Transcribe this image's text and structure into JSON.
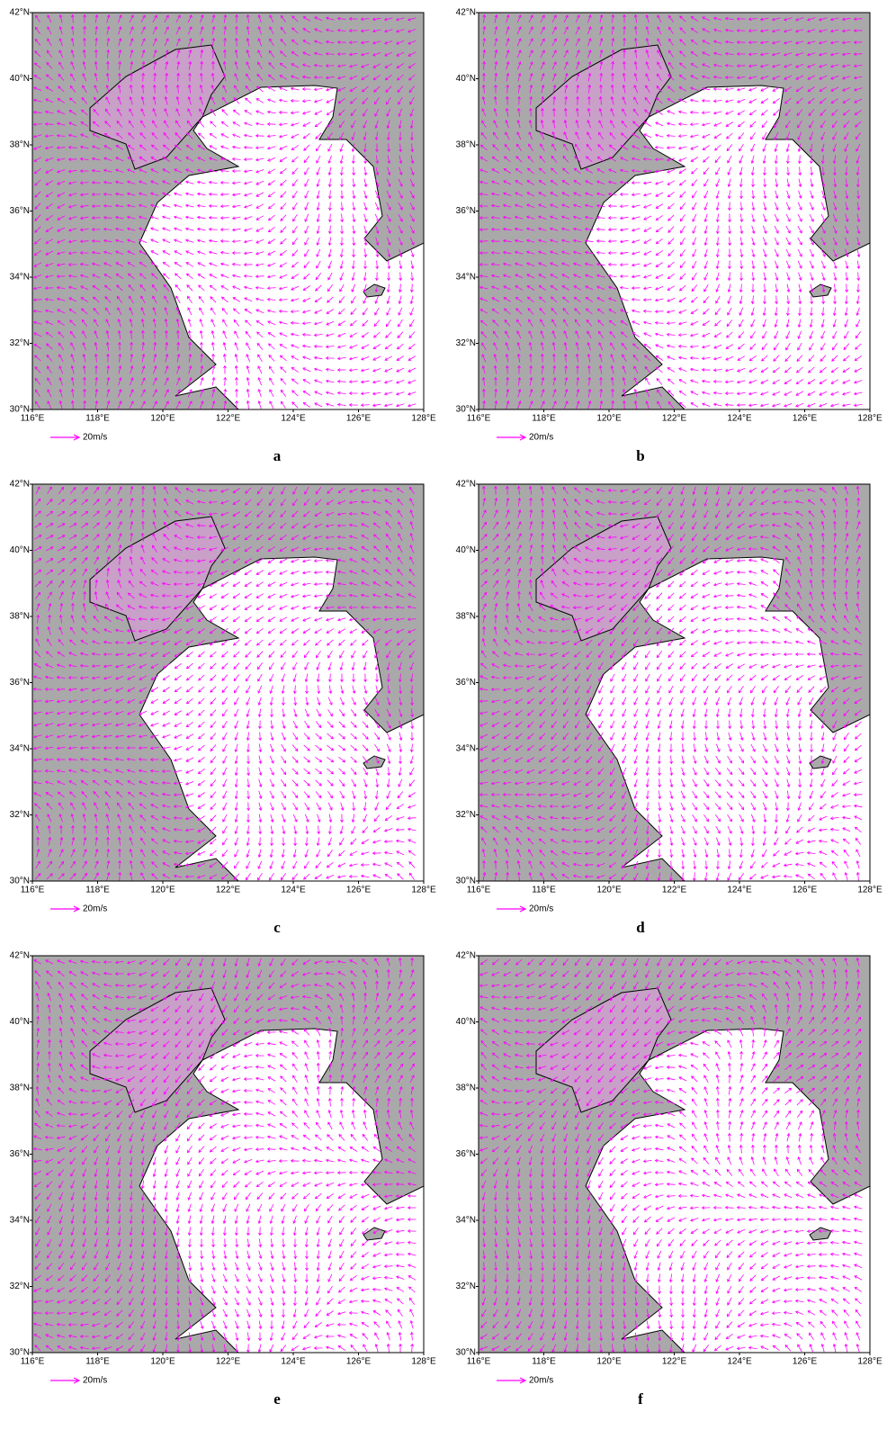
{
  "panels": [
    {
      "label": "a"
    },
    {
      "label": "b"
    },
    {
      "label": "c"
    },
    {
      "label": "d"
    },
    {
      "label": "e"
    },
    {
      "label": "f"
    }
  ],
  "lat_ticks": [
    {
      "value": 42,
      "label": "42°N"
    },
    {
      "value": 40,
      "label": "40°N"
    },
    {
      "value": 38,
      "label": "38°N"
    },
    {
      "value": 36,
      "label": "36°N"
    },
    {
      "value": 34,
      "label": "34°N"
    },
    {
      "value": 32,
      "label": "32°N"
    },
    {
      "value": 30,
      "label": "30°N"
    }
  ],
  "lon_ticks": [
    {
      "value": 116,
      "label": "116°E"
    },
    {
      "value": 118,
      "label": "118°E"
    },
    {
      "value": 120,
      "label": "120°E"
    },
    {
      "value": 122,
      "label": "122°E"
    },
    {
      "value": 124,
      "label": "124°E"
    },
    {
      "value": 126,
      "label": "126°E"
    },
    {
      "value": 128,
      "label": "128°E"
    }
  ],
  "legend": "20m/s"
}
